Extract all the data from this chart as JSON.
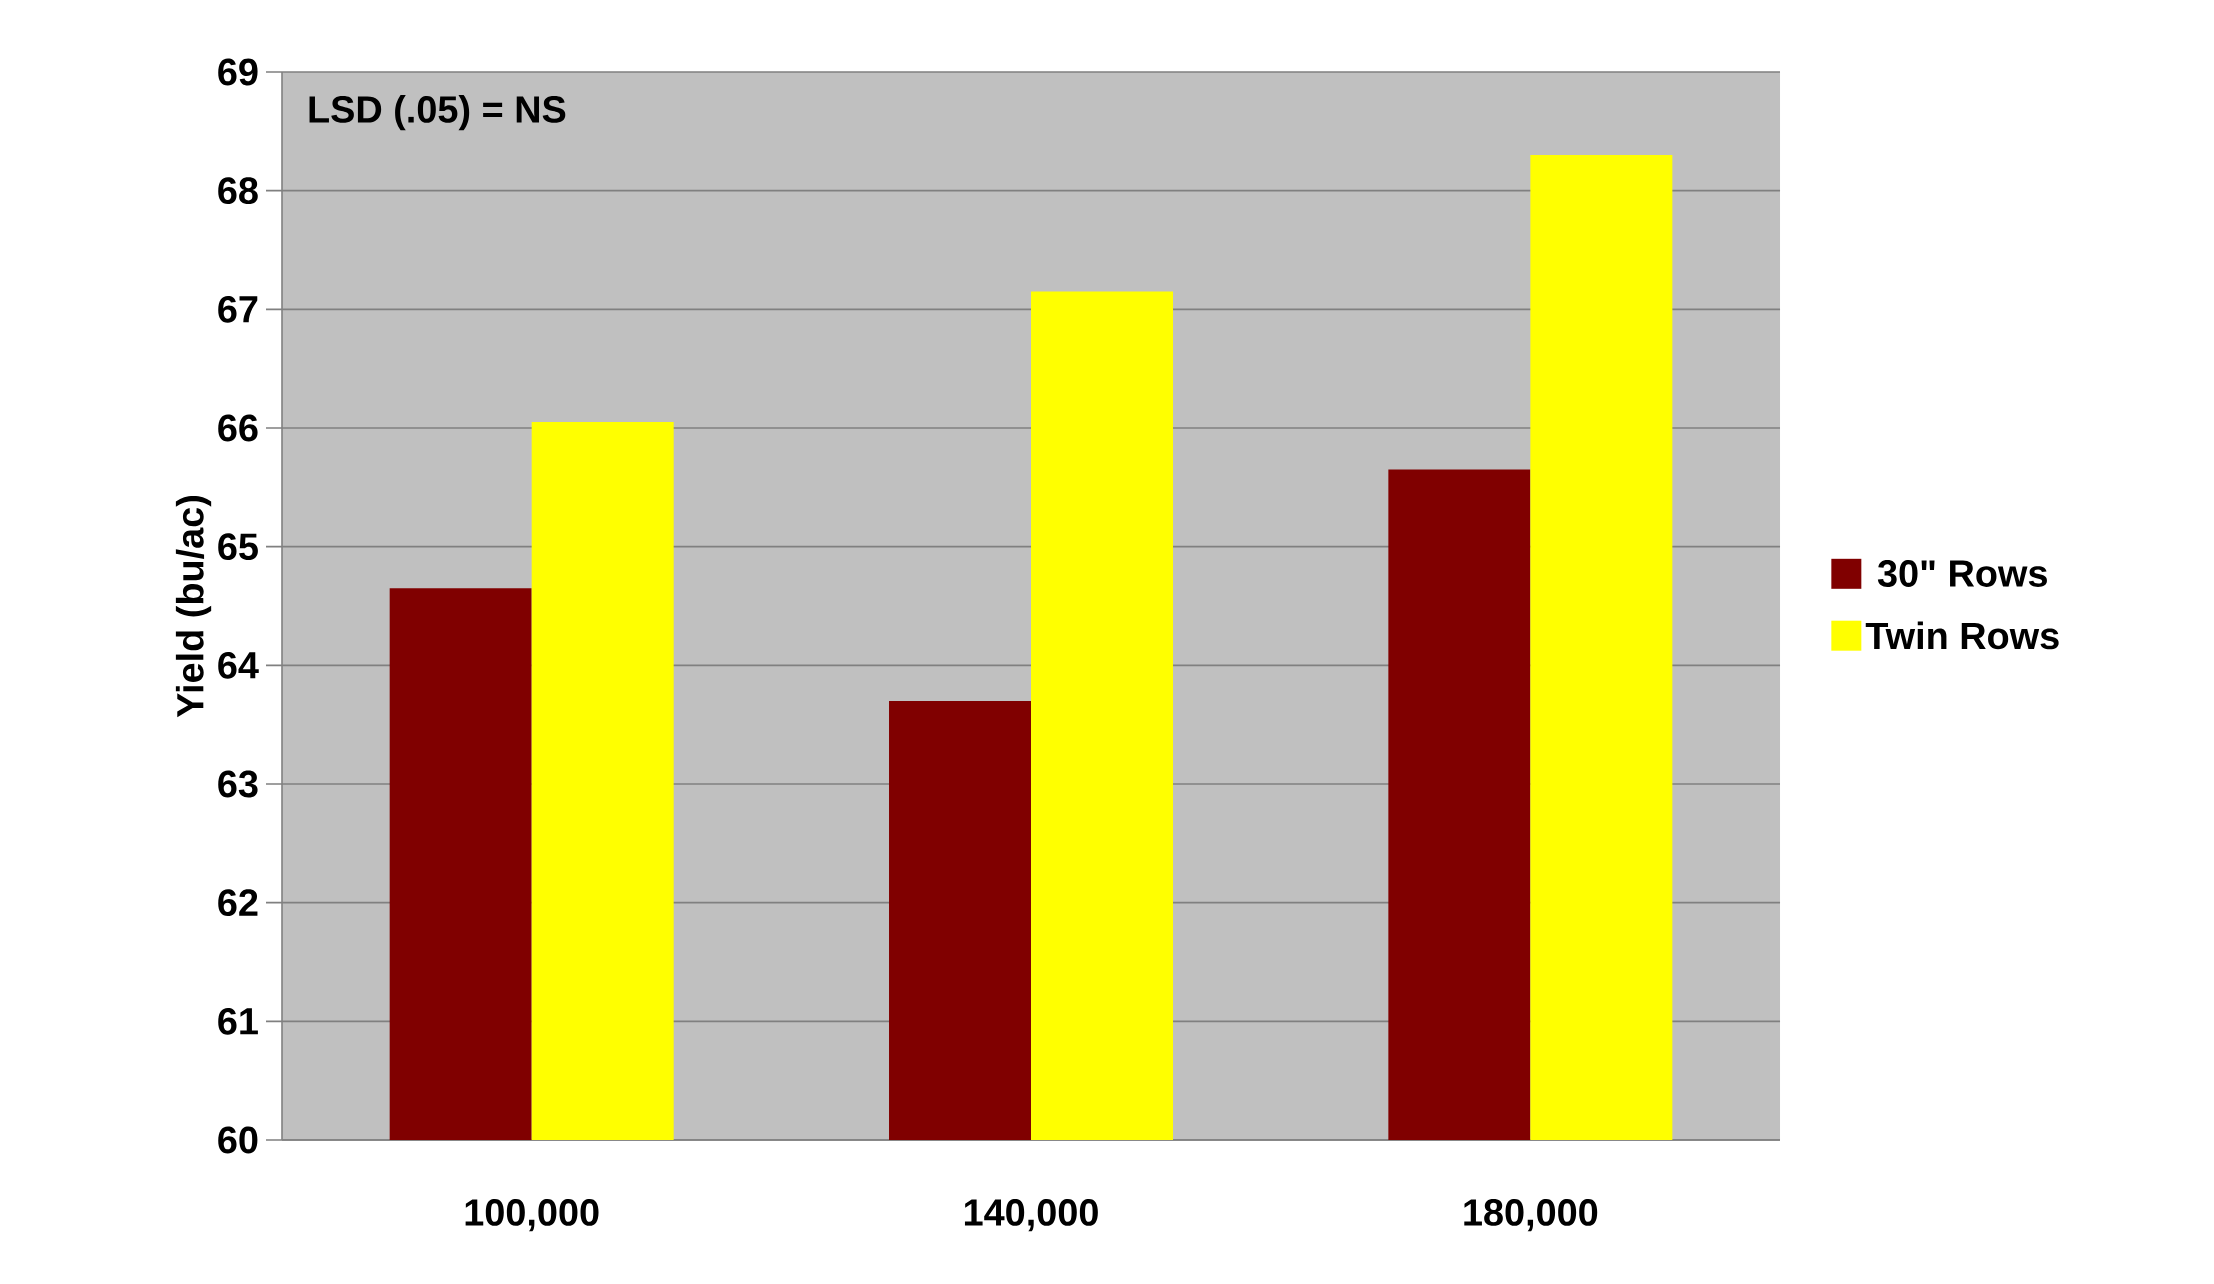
{
  "chart_data": {
    "type": "bar",
    "ylabel": "Yield (bu/ac)",
    "categories": [
      "100,000",
      "140,000",
      "180,000"
    ],
    "series": [
      {
        "name": "30\" Rows",
        "color": "#800000",
        "values": [
          64.65,
          63.7,
          65.65
        ]
      },
      {
        "name": "Twin Rows",
        "color": "#ffff00",
        "values": [
          66.05,
          67.15,
          68.3
        ]
      }
    ],
    "ylim": [
      60,
      69
    ],
    "yticks": [
      60,
      61,
      62,
      63,
      64,
      65,
      66,
      67,
      68,
      69
    ],
    "grid": "y",
    "legend": "right",
    "annotations": [
      "LSD (.05) = NS"
    ]
  }
}
